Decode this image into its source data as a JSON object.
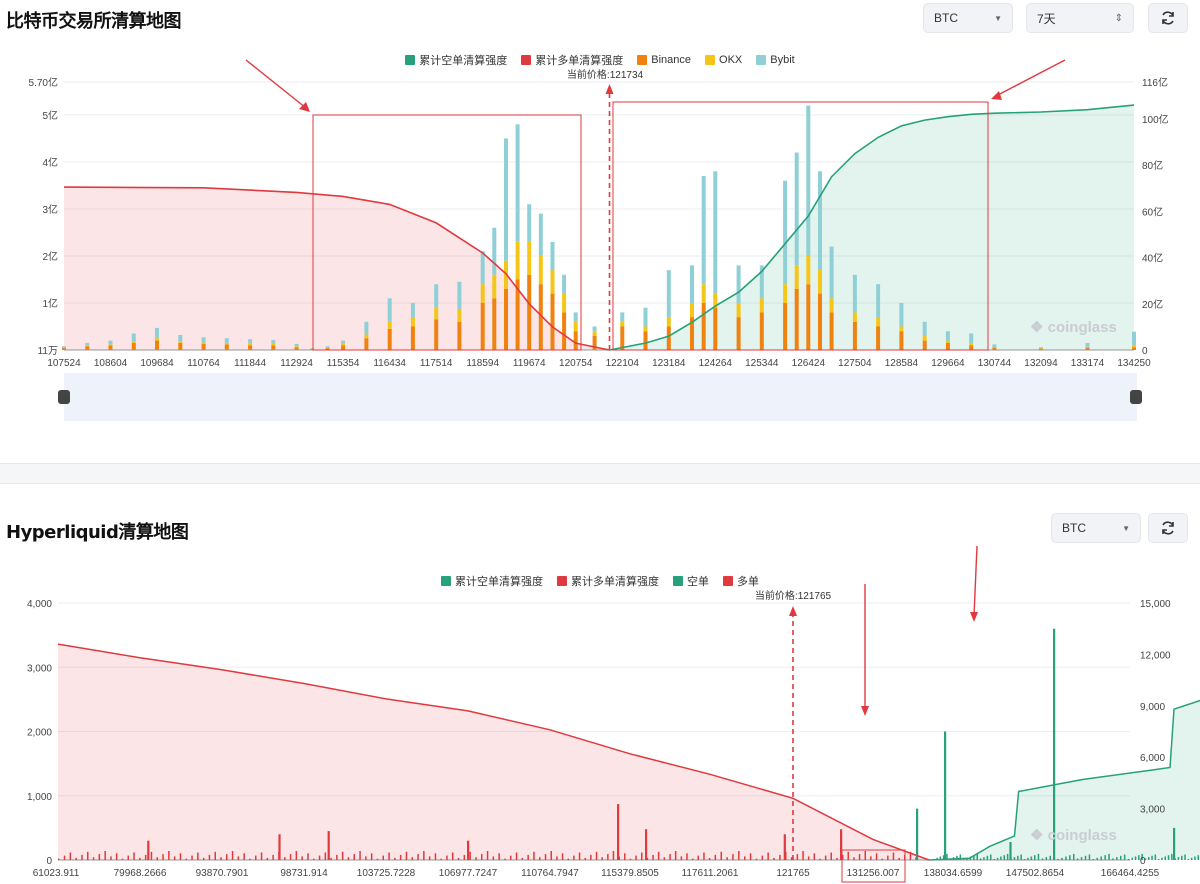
{
  "panel1": {
    "title": "比特币交易所清算地图",
    "symbol_select": "BTC",
    "range_select": "7天",
    "current_price_label": "当前价格:121734",
    "watermark": "coinglass",
    "legend": [
      {
        "name": "累计空单清算强度",
        "color": "#26a17b"
      },
      {
        "name": "累计多单清算强度",
        "color": "#e0393e"
      },
      {
        "name": "Binance",
        "color": "#f0820f"
      },
      {
        "name": "OKX",
        "color": "#f5c518"
      },
      {
        "name": "Bybit",
        "color": "#8fd0d6"
      }
    ]
  },
  "panel2": {
    "title": "Hyperliquid清算地图",
    "symbol_select": "BTC",
    "current_price_label": "当前价格:121765",
    "watermark": "coinglass",
    "legend": [
      {
        "name": "累计空单清算强度",
        "color": "#26a17b"
      },
      {
        "name": "累计多单清算强度",
        "color": "#e0393e"
      },
      {
        "name": "空单",
        "color": "#26a17b"
      },
      {
        "name": "多单",
        "color": "#e0393e"
      }
    ]
  },
  "chart_data": [
    {
      "type": "bar",
      "title": "比特币交易所清算地图",
      "x_ticks": [
        "107524",
        "108604",
        "109684",
        "110764",
        "111844",
        "112924",
        "115354",
        "116434",
        "117514",
        "118594",
        "119674",
        "120754",
        "122104",
        "123184",
        "124264",
        "125344",
        "126424",
        "127504",
        "128584",
        "129664",
        "130744",
        "132094",
        "133174",
        "134250"
      ],
      "current_price": 121734,
      "left_axis": {
        "ticks": [
          "11万",
          "1亿",
          "2亿",
          "3亿",
          "4亿",
          "5亿",
          "5.70亿"
        ],
        "range": [
          "11万",
          "5.70亿"
        ]
      },
      "right_axis": {
        "ticks": [
          "0",
          "20亿",
          "40亿",
          "60亿",
          "80亿",
          "100亿",
          "116亿"
        ],
        "range": [
          0,
          116
        ]
      },
      "stack_series": [
        "Binance",
        "OKX",
        "Bybit"
      ],
      "bars": [
        {
          "price": 107524,
          "Binance": 0.05,
          "OKX": 0.01,
          "Bybit": 0.02
        },
        {
          "price": 108064,
          "Binance": 0.08,
          "OKX": 0.02,
          "Bybit": 0.05
        },
        {
          "price": 108604,
          "Binance": 0.1,
          "OKX": 0.02,
          "Bybit": 0.08
        },
        {
          "price": 109144,
          "Binance": 0.15,
          "OKX": 0.04,
          "Bybit": 0.16
        },
        {
          "price": 109684,
          "Binance": 0.2,
          "OKX": 0.05,
          "Bybit": 0.22
        },
        {
          "price": 110224,
          "Binance": 0.15,
          "OKX": 0.04,
          "Bybit": 0.13
        },
        {
          "price": 110764,
          "Binance": 0.13,
          "OKX": 0.03,
          "Bybit": 0.11
        },
        {
          "price": 111304,
          "Binance": 0.12,
          "OKX": 0.03,
          "Bybit": 0.1
        },
        {
          "price": 111844,
          "Binance": 0.1,
          "OKX": 0.03,
          "Bybit": 0.1
        },
        {
          "price": 112384,
          "Binance": 0.1,
          "OKX": 0.03,
          "Bybit": 0.08
        },
        {
          "price": 112924,
          "Binance": 0.06,
          "OKX": 0.02,
          "Bybit": 0.05
        },
        {
          "price": 113734,
          "Binance": 0.02,
          "OKX": 0.01,
          "Bybit": 0.01
        },
        {
          "price": 114544,
          "Binance": 0.04,
          "OKX": 0.01,
          "Bybit": 0.03
        },
        {
          "price": 115354,
          "Binance": 0.1,
          "OKX": 0.03,
          "Bybit": 0.07
        },
        {
          "price": 115894,
          "Binance": 0.25,
          "OKX": 0.08,
          "Bybit": 0.27
        },
        {
          "price": 116434,
          "Binance": 0.45,
          "OKX": 0.15,
          "Bybit": 0.5
        },
        {
          "price": 116974,
          "Binance": 0.5,
          "OKX": 0.2,
          "Bybit": 0.3
        },
        {
          "price": 117514,
          "Binance": 0.65,
          "OKX": 0.25,
          "Bybit": 0.5
        },
        {
          "price": 118054,
          "Binance": 0.6,
          "OKX": 0.25,
          "Bybit": 0.6
        },
        {
          "price": 118594,
          "Binance": 1.0,
          "OKX": 0.4,
          "Bybit": 0.7
        },
        {
          "price": 118864,
          "Binance": 1.1,
          "OKX": 0.5,
          "Bybit": 1.0
        },
        {
          "price": 119134,
          "Binance": 1.3,
          "OKX": 0.6,
          "Bybit": 2.6
        },
        {
          "price": 119404,
          "Binance": 1.5,
          "OKX": 0.8,
          "Bybit": 2.5
        },
        {
          "price": 119674,
          "Binance": 1.6,
          "OKX": 0.7,
          "Bybit": 0.8
        },
        {
          "price": 119944,
          "Binance": 1.4,
          "OKX": 0.6,
          "Bybit": 0.9
        },
        {
          "price": 120214,
          "Binance": 1.2,
          "OKX": 0.5,
          "Bybit": 0.6
        },
        {
          "price": 120484,
          "Binance": 0.8,
          "OKX": 0.4,
          "Bybit": 0.4
        },
        {
          "price": 120754,
          "Binance": 0.4,
          "OKX": 0.2,
          "Bybit": 0.2
        },
        {
          "price": 121300,
          "Binance": 0.3,
          "OKX": 0.1,
          "Bybit": 0.1
        },
        {
          "price": 122104,
          "Binance": 0.5,
          "OKX": 0.1,
          "Bybit": 0.2
        },
        {
          "price": 122644,
          "Binance": 0.4,
          "OKX": 0.1,
          "Bybit": 0.4
        },
        {
          "price": 123184,
          "Binance": 0.5,
          "OKX": 0.2,
          "Bybit": 1.0
        },
        {
          "price": 123724,
          "Binance": 0.7,
          "OKX": 0.3,
          "Bybit": 0.8
        },
        {
          "price": 123994,
          "Binance": 1.0,
          "OKX": 0.4,
          "Bybit": 2.3
        },
        {
          "price": 124264,
          "Binance": 0.9,
          "OKX": 0.3,
          "Bybit": 2.6
        },
        {
          "price": 124804,
          "Binance": 0.7,
          "OKX": 0.3,
          "Bybit": 0.8
        },
        {
          "price": 125344,
          "Binance": 0.8,
          "OKX": 0.3,
          "Bybit": 0.7
        },
        {
          "price": 125884,
          "Binance": 1.0,
          "OKX": 0.4,
          "Bybit": 2.2
        },
        {
          "price": 126154,
          "Binance": 1.3,
          "OKX": 0.5,
          "Bybit": 2.4
        },
        {
          "price": 126424,
          "Binance": 1.4,
          "OKX": 0.6,
          "Bybit": 3.2
        },
        {
          "price": 126694,
          "Binance": 1.2,
          "OKX": 0.5,
          "Bybit": 2.1
        },
        {
          "price": 126964,
          "Binance": 0.8,
          "OKX": 0.3,
          "Bybit": 1.1
        },
        {
          "price": 127504,
          "Binance": 0.6,
          "OKX": 0.2,
          "Bybit": 0.8
        },
        {
          "price": 128044,
          "Binance": 0.5,
          "OKX": 0.2,
          "Bybit": 0.7
        },
        {
          "price": 128584,
          "Binance": 0.4,
          "OKX": 0.1,
          "Bybit": 0.5
        },
        {
          "price": 129124,
          "Binance": 0.2,
          "OKX": 0.1,
          "Bybit": 0.3
        },
        {
          "price": 129664,
          "Binance": 0.15,
          "OKX": 0.05,
          "Bybit": 0.2
        },
        {
          "price": 130204,
          "Binance": 0.1,
          "OKX": 0.05,
          "Bybit": 0.2
        },
        {
          "price": 130744,
          "Binance": 0.05,
          "OKX": 0.02,
          "Bybit": 0.05
        },
        {
          "price": 132094,
          "Binance": 0.03,
          "OKX": 0.01,
          "Bybit": 0.02
        },
        {
          "price": 133174,
          "Binance": 0.05,
          "OKX": 0.02,
          "Bybit": 0.08
        },
        {
          "price": 134250,
          "Binance": 0.06,
          "OKX": 0.03,
          "Bybit": 0.3
        }
      ],
      "cumulative_long": {
        "name": "累计多单清算强度",
        "points": [
          [
            107524,
            70.5
          ],
          [
            110764,
            70.2
          ],
          [
            112924,
            68.2
          ],
          [
            115354,
            66.5
          ],
          [
            116434,
            63
          ],
          [
            117514,
            55
          ],
          [
            118594,
            42
          ],
          [
            119134,
            33
          ],
          [
            119674,
            20
          ],
          [
            120214,
            10
          ],
          [
            120754,
            3
          ],
          [
            121734,
            0
          ]
        ]
      },
      "cumulative_short": {
        "name": "累计空单清算强度",
        "points": [
          [
            121734,
            0
          ],
          [
            122644,
            3
          ],
          [
            123184,
            6
          ],
          [
            123724,
            12
          ],
          [
            124264,
            19
          ],
          [
            124804,
            25
          ],
          [
            125344,
            34
          ],
          [
            125884,
            46
          ],
          [
            126424,
            58
          ],
          [
            126964,
            75
          ],
          [
            127504,
            85
          ],
          [
            128044,
            92
          ],
          [
            128584,
            97
          ],
          [
            129124,
            99.5
          ],
          [
            129664,
            101
          ],
          [
            130204,
            102
          ],
          [
            130744,
            102.5
          ],
          [
            132094,
            103
          ],
          [
            133174,
            104
          ],
          [
            134250,
            106
          ]
        ]
      }
    },
    {
      "type": "bar",
      "title": "Hyperliquid清算地图",
      "x_ticks": [
        "61023.911",
        "79968.2666",
        "93870.7901",
        "98731.914",
        "103725.7228",
        "106977.7247",
        "110764.7947",
        "115379.8505",
        "117611.2061",
        "121765",
        "131256.007",
        "138034.6599",
        "147502.8654",
        "166464.4255"
      ],
      "current_price": 121765,
      "left_axis": {
        "ticks": [
          "0",
          "1,000",
          "2,000",
          "3,000",
          "4,000"
        ],
        "range": [
          0,
          4000
        ]
      },
      "right_axis": {
        "ticks": [
          "0",
          "3,000",
          "6,000",
          "9,000",
          "12,000",
          "15,000"
        ],
        "range": [
          0,
          15000
        ]
      },
      "spikes": [
        {
          "series": "多单",
          "tick_index": 1.1,
          "value": 300
        },
        {
          "series": "多单",
          "tick_index": 2.7,
          "value": 400
        },
        {
          "series": "多单",
          "tick_index": 3.3,
          "value": 450
        },
        {
          "series": "多单",
          "tick_index": 5.0,
          "value": 300
        },
        {
          "series": "多单",
          "tick_index": 6.85,
          "value": 870
        },
        {
          "series": "多单",
          "tick_index": 7.2,
          "value": 480
        },
        {
          "series": "多单",
          "tick_index": 8.9,
          "value": 400
        },
        {
          "series": "多单",
          "tick_index": 9.6,
          "value": 480
        },
        {
          "series": "空单",
          "tick_index": 10.9,
          "value": 2000
        },
        {
          "series": "空单",
          "tick_index": 12.2,
          "value": 3600
        },
        {
          "series": "空单",
          "tick_index": 10.55,
          "value": 800
        },
        {
          "series": "空单",
          "tick_index": 11.7,
          "value": 280
        },
        {
          "series": "空单",
          "tick_index": 13.55,
          "value": 500
        }
      ],
      "cumulative_long": {
        "name": "累计多单清算强度",
        "points": [
          [
            0,
            12600
          ],
          [
            1,
            11800
          ],
          [
            2,
            11100
          ],
          [
            3,
            10300
          ],
          [
            4,
            9400
          ],
          [
            5,
            8700
          ],
          [
            6,
            7600
          ],
          [
            7,
            6200
          ],
          [
            8,
            5000
          ],
          [
            9,
            3600
          ],
          [
            10,
            1200
          ],
          [
            10.7,
            0
          ]
        ]
      },
      "cumulative_short": {
        "name": "累计空单清算强度",
        "points": [
          [
            10.7,
            0
          ],
          [
            11.2,
            100
          ],
          [
            11.45,
            800
          ],
          [
            11.75,
            1400
          ],
          [
            11.8,
            4000
          ],
          [
            12.5,
            4700
          ],
          [
            13.2,
            5200
          ],
          [
            13.5,
            5400
          ],
          [
            13.55,
            8800
          ],
          [
            14,
            9500
          ],
          [
            14.6,
            10500
          ],
          [
            15,
            11200
          ],
          [
            15.2,
            11300
          ]
        ]
      }
    }
  ]
}
